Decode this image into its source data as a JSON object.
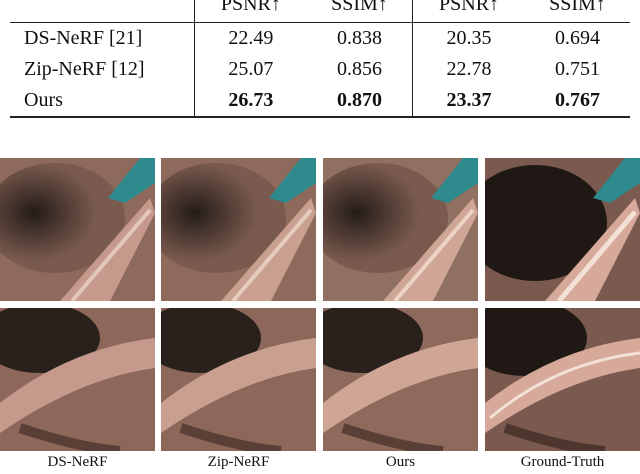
{
  "table": {
    "header": [
      "",
      "PSNR↑",
      "SSIM↑",
      "PSNR↑",
      "SSIM↑"
    ],
    "rows": [
      {
        "method": "DS-NeRF [21]",
        "psnr1": "22.49",
        "ssim1": "0.838",
        "psnr2": "20.35",
        "ssim2": "0.694"
      },
      {
        "method": "Zip-NeRF [12]",
        "psnr1": "25.07",
        "ssim1": "0.856",
        "psnr2": "22.78",
        "ssim2": "0.751"
      },
      {
        "method": "Ours",
        "psnr1": "26.73",
        "ssim1": "0.870",
        "psnr2": "23.37",
        "ssim2": "0.767"
      }
    ]
  },
  "figure": {
    "captions": [
      "DS-NeRF",
      "Zip-NeRF",
      "Ours",
      "Ground-Truth"
    ],
    "colors": {
      "tissue": "#b07a6a",
      "shadow": "#2b211c",
      "stain": "#2f8a8e",
      "highlight": "#e8d2c6"
    }
  }
}
